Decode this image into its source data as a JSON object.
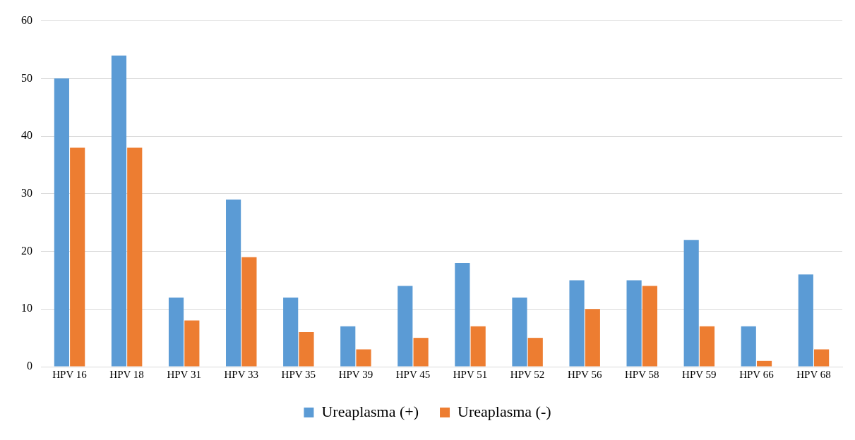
{
  "chart_data": {
    "type": "bar",
    "categories": [
      "HPV 16",
      "HPV 18",
      "HPV 31",
      "HPV 33",
      "HPV 35",
      "HPV 39",
      "HPV 45",
      "HPV 51",
      "HPV 52",
      "HPV 56",
      "HPV 58",
      "HPV 59",
      "HPV 66",
      "HPV 68"
    ],
    "series": [
      {
        "name": "Ureaplasma (+)",
        "color": "#5b9bd5",
        "values": [
          50,
          54,
          12,
          29,
          12,
          7,
          14,
          18,
          12,
          15,
          15,
          22,
          7,
          16
        ]
      },
      {
        "name": "Ureaplasma (-)",
        "color": "#ed7d31",
        "values": [
          38,
          38,
          8,
          19,
          6,
          3,
          5,
          7,
          5,
          10,
          14,
          7,
          1,
          3
        ]
      }
    ],
    "ylim": [
      0,
      60
    ],
    "yticks": [
      0,
      10,
      20,
      30,
      40,
      50,
      60
    ],
    "grid": "y",
    "legend": "bottom"
  }
}
